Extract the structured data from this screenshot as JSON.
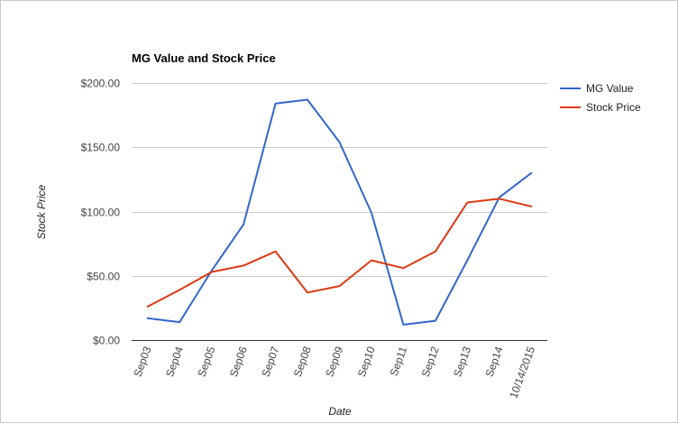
{
  "chart_data": {
    "type": "line",
    "title": "MG Value and Stock Price",
    "xlabel": "Date",
    "ylabel": "Stock Price",
    "categories": [
      "Sep03",
      "Sep04",
      "Sep05",
      "Sep06",
      "Sep07",
      "Sep08",
      "Sep09",
      "Sep10",
      "Sep11",
      "Sep12",
      "Sep13",
      "Sep14",
      "10/14/2015"
    ],
    "yticks": [
      {
        "value": 0,
        "label": "$0.00"
      },
      {
        "value": 50,
        "label": "$50.00"
      },
      {
        "value": 100,
        "label": "$100.00"
      },
      {
        "value": 150,
        "label": "$150.00"
      },
      {
        "value": 200,
        "label": "$200.00"
      }
    ],
    "ylim": [
      0,
      200
    ],
    "grid": true,
    "legend_position": "right",
    "series": [
      {
        "name": "MG Value",
        "color": "#3366cc",
        "values": [
          17,
          14,
          54,
          90,
          184,
          187,
          154,
          99,
          12,
          15,
          62,
          111,
          130
        ]
      },
      {
        "name": "Stock Price",
        "color": "#dc3912",
        "values": [
          26,
          39,
          53,
          58,
          69,
          37,
          42,
          62,
          56,
          69,
          107,
          110,
          104
        ]
      }
    ]
  }
}
